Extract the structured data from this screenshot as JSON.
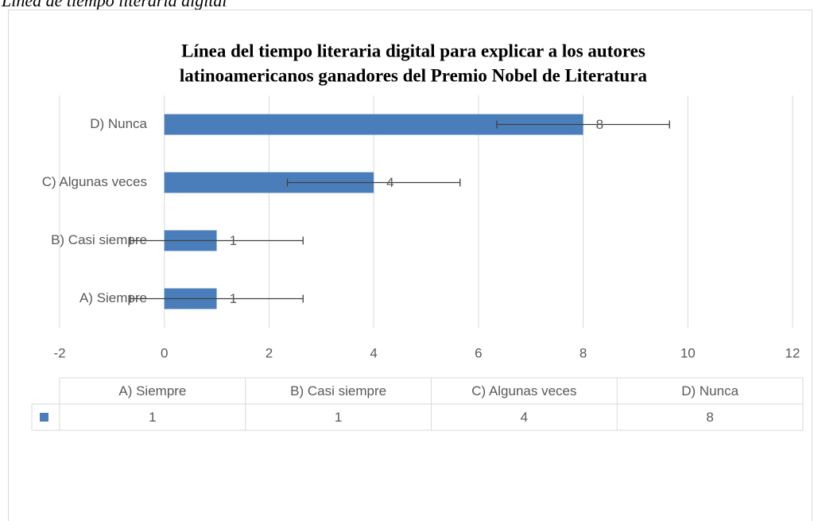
{
  "caption": "Línea de tiempo literaria digital",
  "chart_data": {
    "type": "bar",
    "orientation": "horizontal",
    "title": [
      "Línea del tiempo literaria digital para explicar a los autores",
      "latinoamericanos ganadores del Premio Nobel de Literatura"
    ],
    "categories": [
      "A) Siempre",
      "B) Casi siempre",
      "C) Algunas veces",
      "D) Nunca"
    ],
    "values": [
      1,
      1,
      4,
      8
    ],
    "errors": [
      1.65,
      1.65,
      1.65,
      1.65
    ],
    "color": "#4a7ebb",
    "error_color": "#404040",
    "xlim": [
      -2,
      12
    ],
    "xticks": [
      -2,
      0,
      2,
      4,
      6,
      8,
      10,
      12
    ],
    "grid": true,
    "data_table": true
  }
}
